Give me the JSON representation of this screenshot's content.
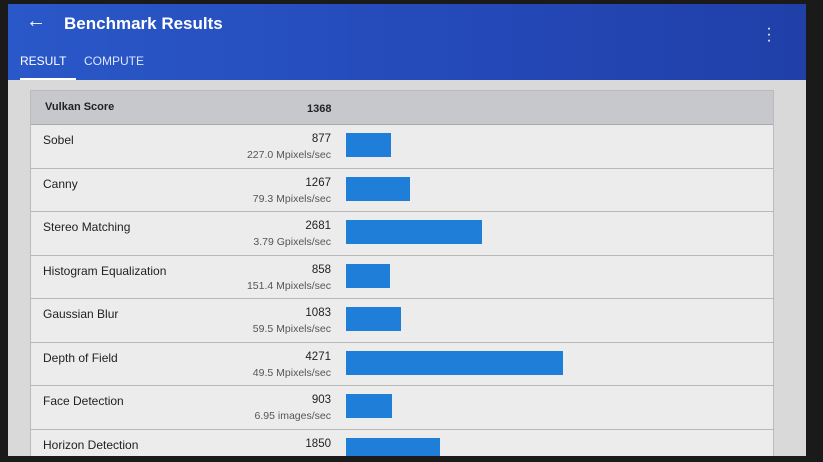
{
  "appbar": {
    "title": "Benchmark Results",
    "back_icon": "arrow-left-icon",
    "menu_icon": "more-vert-icon"
  },
  "tabs": [
    {
      "label": "RESULT",
      "active": true
    },
    {
      "label": "COMPUTE",
      "active": false
    }
  ],
  "summary": {
    "label": "Vulkan Score",
    "value": "1368"
  },
  "bar_color": "#1e7ed8",
  "results": [
    {
      "name": "Sobel",
      "score": 877,
      "rate": "227.0 Mpixels/sec"
    },
    {
      "name": "Canny",
      "score": 1267,
      "rate": "79.3 Mpixels/sec"
    },
    {
      "name": "Stereo Matching",
      "score": 2681,
      "rate": "3.79 Gpixels/sec"
    },
    {
      "name": "Histogram Equalization",
      "score": 858,
      "rate": "151.4 Mpixels/sec"
    },
    {
      "name": "Gaussian Blur",
      "score": 1083,
      "rate": "59.5 Mpixels/sec"
    },
    {
      "name": "Depth of Field",
      "score": 4271,
      "rate": "49.5 Mpixels/sec"
    },
    {
      "name": "Face Detection",
      "score": 903,
      "rate": "6.95 images/sec"
    },
    {
      "name": "Horizon Detection",
      "score": 1850,
      "rate": ""
    }
  ]
}
